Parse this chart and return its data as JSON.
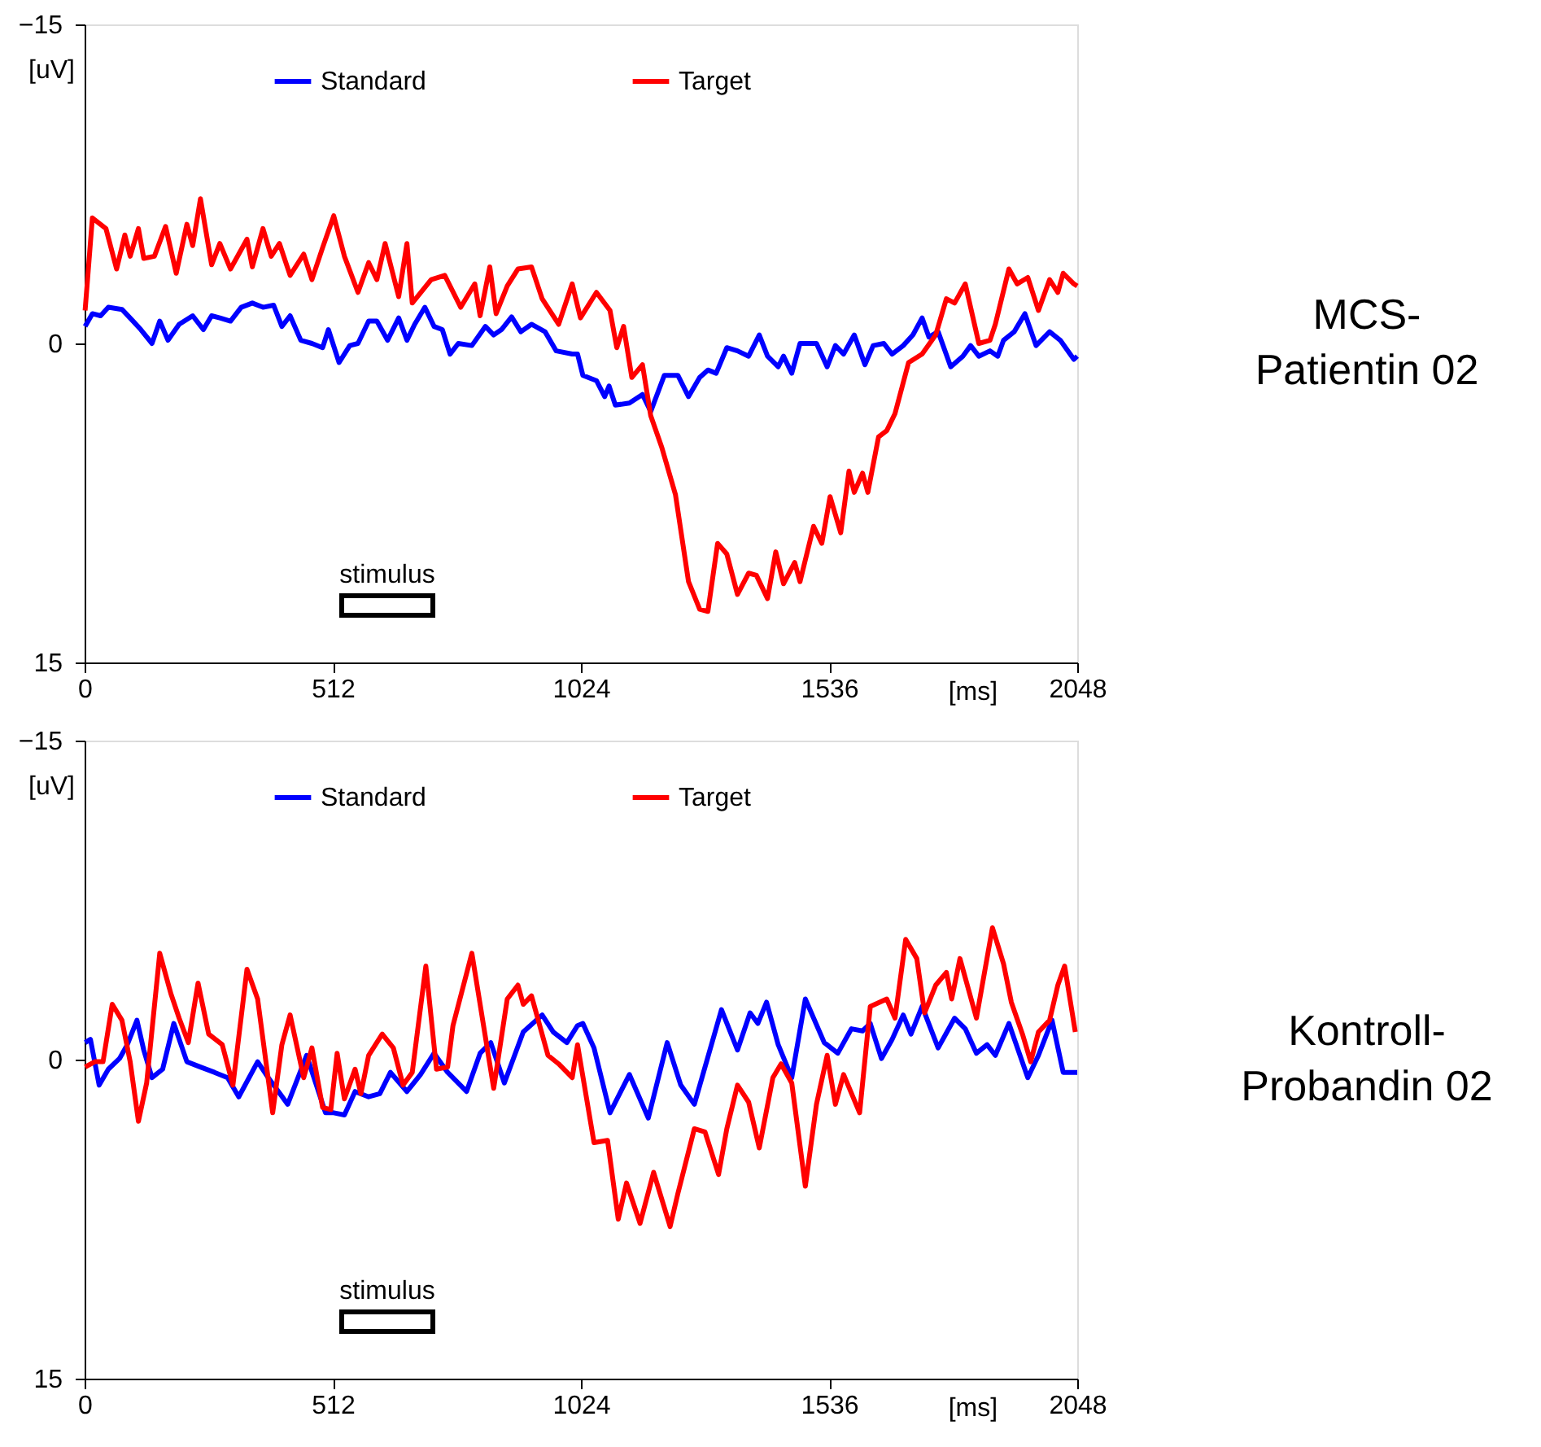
{
  "chart_data": [
    {
      "type": "line",
      "xlabel": "[ms]",
      "ylabel": "[uV]",
      "xlim": [
        0,
        2048
      ],
      "xticks": [
        0,
        512,
        1024,
        1536,
        2048
      ],
      "ylim": [
        15,
        -15
      ],
      "yticks": [
        -15,
        0,
        15
      ],
      "grid": false,
      "legend": "top",
      "marker": "none",
      "line_style": "solid",
      "annotations": [
        "stimulus",
        "MCS-\nPatientin 02"
      ],
      "series": [
        {
          "name": "Standard",
          "color": "#0000ff",
          "x": [
            1,
            16,
            33,
            49,
            77,
            100,
            116,
            139,
            155,
            172,
            195,
            223,
            245,
            262,
            279,
            301,
            323,
            346,
            368,
            390,
            407,
            424,
            446,
            469,
            491,
            503,
            525,
            547,
            564,
            586,
            603,
            625,
            648,
            665,
            681,
            702,
            721,
            738,
            754,
            771,
            799,
            827,
            844,
            860,
            881,
            900,
            922,
            950,
            973,
            1006,
            1017,
            1028,
            1056,
            1073,
            1082,
            1095,
            1124,
            1151,
            1168,
            1196,
            1224,
            1246,
            1269,
            1286,
            1303,
            1325,
            1347,
            1370,
            1392,
            1409,
            1431,
            1442,
            1459,
            1476,
            1510,
            1532,
            1549,
            1566,
            1588,
            1610,
            1627,
            1649,
            1666,
            1689,
            1709,
            1728,
            1742,
            1761,
            1787,
            1812,
            1828,
            1845,
            1868,
            1884,
            1896,
            1918,
            1940,
            1963,
            1991,
            2013,
            2041,
            2048
          ],
          "values": [
            -0.8,
            -1.4,
            -1.3,
            -1.7,
            -1.6,
            -1.05,
            -0.65,
            0,
            -1.05,
            -0.15,
            -0.9,
            -1.3,
            -0.65,
            -1.3,
            -1.2,
            -1.05,
            -1.7,
            -1.9,
            -1.7,
            -1.8,
            -0.8,
            -1.3,
            -0.15,
            0,
            0.2,
            -0.65,
            0.9,
            0.1,
            0,
            -1.05,
            -1.05,
            -0.15,
            -1.2,
            -0.15,
            -0.9,
            -1.7,
            -0.8,
            -0.65,
            0.5,
            0,
            0.1,
            -0.8,
            -0.4,
            -0.65,
            -1.25,
            -0.55,
            -0.9,
            -0.55,
            0.35,
            0.5,
            0.5,
            1.5,
            1.75,
            2.5,
            2.0,
            2.9,
            2.8,
            2.4,
            3.2,
            1.5,
            1.5,
            2.5,
            1.6,
            1.25,
            1.4,
            0.2,
            0.35,
            0.6,
            -0.4,
            0.6,
            1.1,
            0.6,
            1.4,
            0,
            0,
            1.1,
            0.1,
            0.5,
            -0.4,
            1.0,
            0.1,
            0,
            0.5,
            0.1,
            -0.4,
            -1.2,
            -0.3,
            -0.55,
            1.1,
            0.6,
            0.1,
            0.6,
            0.35,
            0.6,
            -0.15,
            -0.55,
            -1.4,
            0.1,
            -0.55,
            -0.15,
            0.75,
            0.6
          ]
        },
        {
          "name": "Target",
          "color": "#ff0000",
          "x": [
            1,
            16,
            44,
            66,
            83,
            94,
            111,
            122,
            144,
            167,
            189,
            211,
            223,
            239,
            262,
            279,
            301,
            335,
            346,
            368,
            385,
            402,
            424,
            452,
            469,
            491,
            514,
            536,
            564,
            586,
            603,
            620,
            648,
            665,
            676,
            715,
            743,
            776,
            805,
            816,
            836,
            849,
            872,
            894,
            922,
            944,
            978,
            1006,
            1023,
            1056,
            1084,
            1098,
            1112,
            1129,
            1151,
            1168,
            1191,
            1219,
            1246,
            1269,
            1286,
            1306,
            1325,
            1347,
            1370,
            1386,
            1409,
            1426,
            1442,
            1465,
            1476,
            1504,
            1521,
            1538,
            1560,
            1577,
            1588,
            1605,
            1616,
            1638,
            1655,
            1672,
            1700,
            1728,
            1756,
            1778,
            1795,
            1817,
            1845,
            1868,
            1879,
            1907,
            1924,
            1946,
            1968,
            1991,
            2008,
            2019,
            2041,
            2048
          ],
          "values": [
            -1.55,
            -5.9,
            -5.4,
            -3.5,
            -5.1,
            -4.1,
            -5.4,
            -4.0,
            -4.1,
            -5.5,
            -3.3,
            -5.6,
            -4.6,
            -6.8,
            -3.7,
            -4.7,
            -3.5,
            -4.9,
            -3.6,
            -5.4,
            -4.1,
            -4.7,
            -3.2,
            -4.2,
            -3.0,
            -4.5,
            -6.0,
            -4.1,
            -2.4,
            -3.8,
            -3.0,
            -4.7,
            -2.2,
            -4.7,
            -1.9,
            -3.0,
            -3.2,
            -1.7,
            -2.8,
            -1.3,
            -3.6,
            -1.4,
            -2.7,
            -3.5,
            -3.6,
            -2.1,
            -0.9,
            -2.8,
            -1.2,
            -2.4,
            -1.55,
            0.2,
            -0.8,
            1.6,
            1.0,
            3.4,
            4.9,
            7.1,
            11.2,
            12.5,
            12.6,
            9.4,
            9.9,
            11.8,
            10.8,
            10.9,
            12.0,
            9.8,
            11.3,
            10.3,
            11.2,
            8.6,
            9.4,
            7.2,
            8.9,
            6.0,
            7.0,
            6.1,
            7.0,
            4.4,
            4.1,
            3.3,
            0.9,
            0.5,
            -0.4,
            -2.1,
            -1.9,
            -2.8,
            0,
            -0.15,
            -0.9,
            -3.5,
            -2.8,
            -3.1,
            -1.55,
            -3.0,
            -2.4,
            -3.3,
            -2.8,
            -2.7
          ]
        }
      ]
    },
    {
      "type": "line",
      "xlabel": "[ms]",
      "ylabel": "[uV]",
      "xlim": [
        0,
        2048
      ],
      "xticks": [
        0,
        512,
        1024,
        1536,
        2048
      ],
      "ylim": [
        15,
        -15
      ],
      "yticks": [
        -15,
        0,
        15
      ],
      "grid": false,
      "legend": "top",
      "marker": "none",
      "line_style": "solid",
      "annotations": [
        "stimulus",
        "Kontroll-\nProbandin 02"
      ],
      "series": [
        {
          "name": "Standard",
          "color": "#0000ff",
          "x": [
            1,
            12,
            30,
            49,
            72,
            88,
            108,
            122,
            139,
            161,
            184,
            211,
            239,
            268,
            295,
            318,
            357,
            379,
            419,
            458,
            497,
            514,
            536,
            558,
            586,
            609,
            631,
            665,
            693,
            721,
            749,
            788,
            816,
            838,
            866,
            905,
            944,
            967,
            995,
            1017,
            1028,
            1051,
            1084,
            1124,
            1163,
            1202,
            1230,
            1258,
            1314,
            1347,
            1373,
            1389,
            1407,
            1431,
            1459,
            1487,
            1526,
            1554,
            1582,
            1605,
            1621,
            1644,
            1666,
            1689,
            1705,
            1728,
            1761,
            1795,
            1817,
            1840,
            1862,
            1879,
            1907,
            1946,
            1968,
            1996,
            2019,
            2048
          ],
          "values": [
            -0.8,
            -0.95,
            1.2,
            0.45,
            -0.05,
            -0.7,
            -1.85,
            -0.45,
            0.85,
            0.45,
            -1.7,
            0.1,
            0.35,
            0.6,
            0.85,
            1.75,
            0.1,
            0.85,
            2.1,
            -0.2,
            2.5,
            2.5,
            2.6,
            1.5,
            1.75,
            1.6,
            0.6,
            1.5,
            0.7,
            -0.3,
            0.6,
            1.5,
            -0.3,
            -0.8,
            1.1,
            -1.3,
            -2.1,
            -1.3,
            -0.8,
            -1.6,
            -1.7,
            -0.55,
            2.5,
            0.7,
            2.75,
            -0.8,
            1.2,
            2.1,
            -2.35,
            -0.45,
            -2.2,
            -1.7,
            -2.7,
            -0.7,
            0.85,
            -2.85,
            -0.8,
            -0.3,
            -1.45,
            -1.35,
            -1.7,
            -0.05,
            -0.95,
            -2.1,
            -1.2,
            -2.5,
            -0.55,
            -1.95,
            -1.45,
            -0.3,
            -0.7,
            -0.2,
            -1.7,
            0.85,
            -0.2,
            -1.85,
            0.6,
            0.6
          ]
        },
        {
          "name": "Target",
          "color": "#ff0000",
          "x": [
            1,
            21,
            38,
            57,
            77,
            94,
            111,
            128,
            155,
            178,
            195,
            214,
            234,
            256,
            284,
            306,
            335,
            357,
            388,
            407,
            424,
            452,
            469,
            491,
            508,
            521,
            536,
            558,
            570,
            586,
            614,
            637,
            657,
            676,
            704,
            726,
            749,
            760,
            799,
            844,
            872,
            894,
            905,
            922,
            956,
            978,
            1006,
            1017,
            1051,
            1079,
            1101,
            1118,
            1146,
            1174,
            1208,
            1224,
            1258,
            1280,
            1308,
            1325,
            1347,
            1370,
            1392,
            1420,
            1437,
            1459,
            1487,
            1510,
            1532,
            1549,
            1566,
            1599,
            1621,
            1655,
            1672,
            1694,
            1717,
            1733,
            1756,
            1778,
            1789,
            1806,
            1840,
            1873,
            1896,
            1912,
            1935,
            1952,
            1968,
            1991,
            2008,
            2022,
            2044
          ],
          "values": [
            0.35,
            0.1,
            0.1,
            -2.6,
            -1.85,
            0.1,
            2.9,
            1.1,
            -5.0,
            -3.1,
            -1.95,
            -0.8,
            -3.6,
            -1.2,
            -0.7,
            1.2,
            -4.25,
            -2.85,
            2.5,
            -0.7,
            -2.1,
            0.85,
            -0.55,
            2.25,
            2.35,
            -0.3,
            1.85,
            0.45,
            1.6,
            -0.2,
            -1.2,
            -0.55,
            1.2,
            0.6,
            -4.4,
            0.45,
            0.35,
            -1.6,
            -5.0,
            1.35,
            -2.85,
            -3.5,
            -2.6,
            -3.0,
            -0.2,
            0.2,
            0.85,
            -0.7,
            3.9,
            3.8,
            7.5,
            5.8,
            7.7,
            5.3,
            7.85,
            6.3,
            3.25,
            3.4,
            5.4,
            3.25,
            1.2,
            2.0,
            4.15,
            0.85,
            0.2,
            1.1,
            5.95,
            2.1,
            -0.2,
            2.1,
            0.7,
            2.5,
            -2.5,
            -2.85,
            -1.95,
            -5.65,
            -4.75,
            -2.2,
            -3.5,
            -4.1,
            -2.85,
            -4.75,
            -1.95,
            -6.2,
            -4.5,
            -2.7,
            -1.2,
            0.1,
            -1.3,
            -1.85,
            -3.5,
            -4.4,
            -1.3
          ]
        }
      ]
    }
  ]
}
